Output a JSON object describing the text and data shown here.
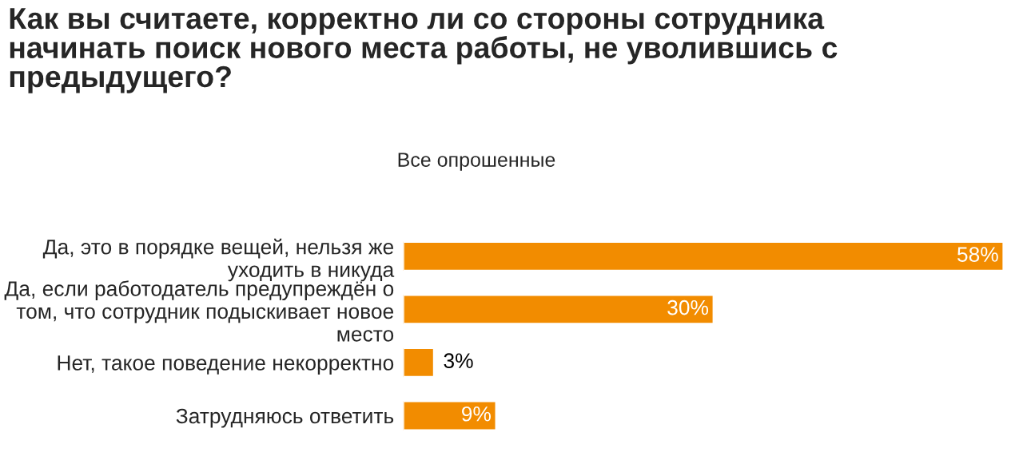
{
  "chart_data": {
    "type": "bar",
    "orientation": "horizontal",
    "title": "Как вы считаете, корректно ли со стороны сотрудника\nначинать поиск нового места работы, не уволившись с\nпредыдущего?",
    "subtitle": "Все опрошенные",
    "categories": [
      "Да, это в порядке вещей, нельзя же\nуходить в никуда",
      "Да, если работодатель предупреждён о\nтом, что сотрудник подыскивает новое\nместо",
      "Нет, такое поведение некорректно",
      "Затрудняюсь ответить"
    ],
    "values": [
      58,
      30,
      3,
      9
    ],
    "value_labels": [
      "58%",
      "30%",
      "3%",
      "9%"
    ],
    "color": "#f28c00",
    "grid": false,
    "legend": false
  }
}
